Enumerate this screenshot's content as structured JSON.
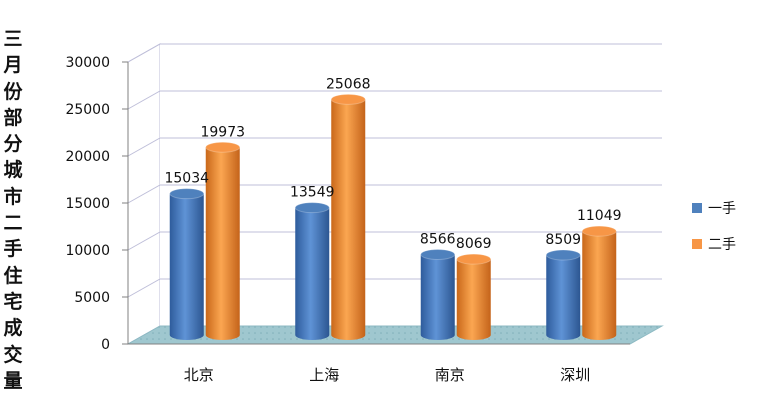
{
  "chart_data": {
    "type": "bar",
    "title": "三月份部分城市二手住宅成交量",
    "categories": [
      "北京",
      "上海",
      "南京",
      "深圳"
    ],
    "series": [
      {
        "name": "一手",
        "values": [
          15034,
          13549,
          8566,
          8509
        ],
        "color": "#4F81BD"
      },
      {
        "name": "二手",
        "values": [
          19973,
          25068,
          8069,
          11049
        ],
        "color": "#F79646"
      }
    ],
    "ylim": [
      0,
      30000
    ],
    "yticks": [
      0,
      5000,
      10000,
      15000,
      20000,
      25000,
      30000
    ],
    "grid": true,
    "legend_position": "right",
    "three_d": true
  }
}
